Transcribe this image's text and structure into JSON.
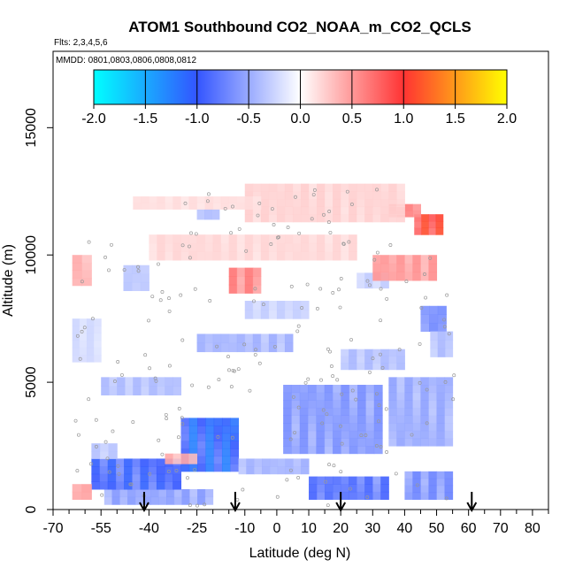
{
  "chart_data": {
    "type": "heatmap",
    "title": "ATOM1 Southbound CO2_NOAA_m_CO2_QCLS",
    "subtitle_flights": "Flts: 2,3,4,5,6",
    "subtitle_dates": "MMDD: 0801,0803,0806,0808,0812",
    "xlabel": "Latitude (deg N)",
    "ylabel": "Altitude (m)",
    "xlim": [
      -70,
      85
    ],
    "ylim": [
      0,
      18000
    ],
    "x_ticks": [
      -70,
      -55,
      -40,
      -25,
      -10,
      0,
      10,
      20,
      30,
      40,
      50,
      60,
      70,
      80
    ],
    "x_minor_ticks": [
      -65,
      -60,
      -50,
      -45,
      -35,
      -30,
      -20,
      -15,
      -5,
      5,
      15,
      25,
      35,
      45,
      55,
      65,
      75,
      85
    ],
    "y_ticks": [
      0,
      5000,
      10000,
      15000
    ],
    "colorbar": {
      "min": -2.0,
      "max": 2.0,
      "ticks": [
        "-2.0",
        "-1.5",
        "-1.0",
        "-0.5",
        "0.0",
        "0.5",
        "1.0",
        "1.5",
        "2.0"
      ],
      "stops": [
        "#00ffff",
        "#3355ff",
        "#ffffff",
        "#ff3333",
        "#ffff00"
      ]
    },
    "arrows_latitude": [
      -41.5,
      -13,
      20,
      61
    ],
    "cells": [
      {
        "lat0": -54,
        "lat1": -20,
        "alt0": 200,
        "alt1": 800,
        "value": -0.5
      },
      {
        "lat0": -58,
        "lat1": -30,
        "alt0": 800,
        "alt1": 2000,
        "value": -0.85
      },
      {
        "lat0": -58,
        "lat1": -50,
        "alt0": 2000,
        "alt1": 2600,
        "value": -0.3
      },
      {
        "lat0": -30,
        "lat1": -12,
        "alt0": 1500,
        "alt1": 3600,
        "value": -1.0
      },
      {
        "lat0": -12,
        "lat1": 10,
        "alt0": 1400,
        "alt1": 2000,
        "value": -0.4
      },
      {
        "lat0": 2,
        "lat1": 33,
        "alt0": 2200,
        "alt1": 4900,
        "value": -0.55
      },
      {
        "lat0": 10,
        "lat1": 35,
        "alt0": 400,
        "alt1": 1300,
        "value": -0.75
      },
      {
        "lat0": 40,
        "lat1": 55,
        "alt0": 400,
        "alt1": 1500,
        "value": -0.6
      },
      {
        "lat0": 35,
        "lat1": 55,
        "alt0": 2500,
        "alt1": 5200,
        "value": -0.45
      },
      {
        "lat0": -55,
        "lat1": -30,
        "alt0": 4500,
        "alt1": 5200,
        "value": -0.35
      },
      {
        "lat0": -25,
        "lat1": 5,
        "alt0": 6200,
        "alt1": 6900,
        "value": -0.4
      },
      {
        "lat0": 20,
        "lat1": 40,
        "alt0": 5500,
        "alt1": 6300,
        "value": -0.35
      },
      {
        "lat0": 45,
        "lat1": 53,
        "alt0": 7000,
        "alt1": 8000,
        "value": -0.6
      },
      {
        "lat0": -10,
        "lat1": 10,
        "alt0": 7500,
        "alt1": 8200,
        "value": -0.25
      },
      {
        "lat0": -48,
        "lat1": -40,
        "alt0": 8600,
        "alt1": 9600,
        "value": -0.3
      },
      {
        "lat0": 25,
        "lat1": 35,
        "alt0": 8700,
        "alt1": 9300,
        "value": -0.25
      },
      {
        "lat0": -25,
        "lat1": -18,
        "alt0": 11400,
        "alt1": 11800,
        "value": -0.35
      },
      {
        "lat0": -15,
        "lat1": -5,
        "alt0": 8500,
        "alt1": 9500,
        "value": 0.55
      },
      {
        "lat0": 30,
        "lat1": 50,
        "alt0": 9000,
        "alt1": 10000,
        "value": 0.45
      },
      {
        "lat0": 43,
        "lat1": 52,
        "alt0": 10800,
        "alt1": 11600,
        "value": 0.9
      },
      {
        "lat0": 35,
        "lat1": 45,
        "alt0": 11500,
        "alt1": 12000,
        "value": 0.55
      },
      {
        "lat0": -10,
        "lat1": 40,
        "alt0": 11300,
        "alt1": 12800,
        "value": 0.2
      },
      {
        "lat0": -45,
        "lat1": -5,
        "alt0": 11800,
        "alt1": 12300,
        "value": 0.15
      },
      {
        "lat0": -40,
        "lat1": 25,
        "alt0": 9800,
        "alt1": 10800,
        "value": 0.18
      },
      {
        "lat0": -64,
        "lat1": -58,
        "alt0": 8800,
        "alt1": 10000,
        "value": 0.35
      },
      {
        "lat0": -35,
        "lat1": -25,
        "alt0": 1800,
        "alt1": 2200,
        "value": 0.35
      },
      {
        "lat0": -64,
        "lat1": -58,
        "alt0": 400,
        "alt1": 1000,
        "value": 0.4
      },
      {
        "lat0": 48,
        "lat1": 55,
        "alt0": 6000,
        "alt1": 7000,
        "value": -0.35
      },
      {
        "lat0": -64,
        "lat1": -55,
        "alt0": 5800,
        "alt1": 7500,
        "value": -0.2
      }
    ]
  }
}
